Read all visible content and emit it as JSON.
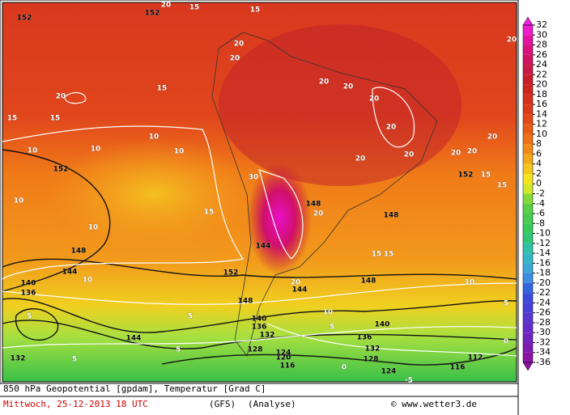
{
  "map": {
    "contour_labels": [
      "152",
      "152",
      "152",
      "152",
      "152",
      "148",
      "148",
      "148",
      "148",
      "148",
      "144",
      "144",
      "144",
      "144",
      "140",
      "140",
      "140",
      "136",
      "136",
      "136",
      "132",
      "132",
      "132",
      "128",
      "128",
      "124",
      "124",
      "120",
      "116",
      "116",
      "112",
      "20",
      "15",
      "15",
      "15",
      "10",
      "10",
      "10",
      "10",
      "10",
      "10",
      "15",
      "10",
      "5",
      "5",
      "5",
      "5",
      "10",
      "5",
      "10",
      "5",
      "0",
      "0",
      "-5",
      "20",
      "20",
      "20",
      "20",
      "20",
      "20",
      "20",
      "20",
      "20",
      "20",
      "15",
      "15",
      "15",
      "15",
      "20",
      "20",
      "30",
      "15",
      "15",
      "20",
      "20",
      "20"
    ]
  },
  "colorbar": {
    "labels": [
      32,
      30,
      28,
      26,
      24,
      22,
      20,
      18,
      16,
      14,
      12,
      10,
      8,
      6,
      4,
      2,
      0,
      -2,
      -4,
      -6,
      -8,
      -10,
      -12,
      -14,
      -16,
      -18,
      -20,
      -22,
      -24,
      -26,
      -28,
      -30,
      -32,
      -34,
      -36
    ]
  },
  "footer": {
    "title": "850 hPa Geopotential [gpdam], Temperatur [Grad C]",
    "date": "Mittwoch, 25-12-2013  18 UTC",
    "model": "(GFS)",
    "run": "(Analyse)",
    "credit": "© www.wetter3.de"
  }
}
